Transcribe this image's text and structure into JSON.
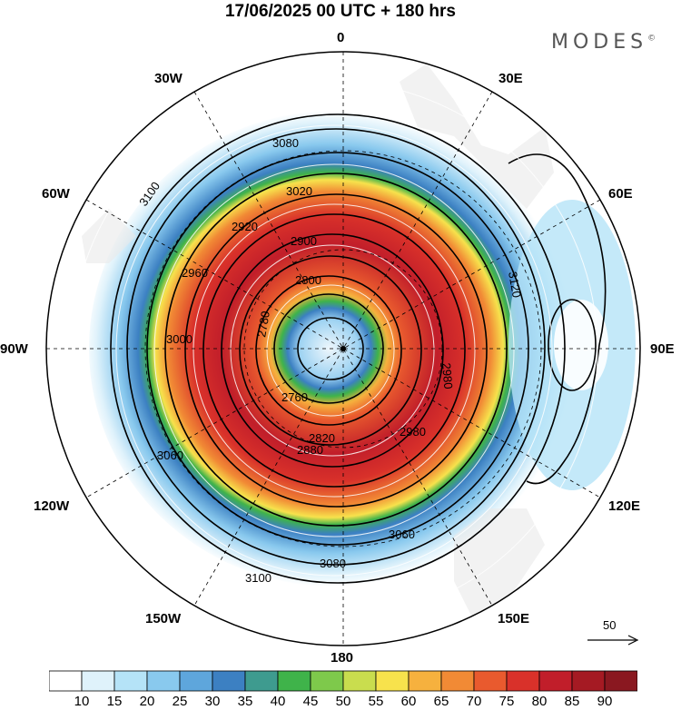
{
  "title": "17/06/2025  00 UTC  + 180 hrs",
  "brand": {
    "text": "MODES",
    "mark": "©"
  },
  "longitude_labels": {
    "top": "0",
    "top_left": "30W",
    "top_right": "30E",
    "upper_left": "60W",
    "upper_right": "60E",
    "left": "90W",
    "right": "90E",
    "lower_left": "120W",
    "lower_right": "120E",
    "bottom_left": "150W",
    "bottom_right": "150E",
    "bottom": "180"
  },
  "contour_labels": [
    "3080",
    "3100",
    "3020",
    "2920",
    "2900",
    "2960",
    "3000",
    "2800",
    "2780",
    "2760",
    "2880",
    "2820",
    "3060",
    "3120",
    "3100",
    "3080",
    "3060",
    "2980",
    "2980"
  ],
  "vector_scale_label": "50",
  "colorbar": {
    "labels": [
      "10",
      "15",
      "20",
      "25",
      "30",
      "35",
      "40",
      "45",
      "50",
      "55",
      "60",
      "65",
      "70",
      "75",
      "80",
      "85",
      "90"
    ],
    "colors": [
      "#ffffff",
      "#dff2fb",
      "#b5e3f7",
      "#89c9ee",
      "#5ea6dc",
      "#3c80c2",
      "#3e9b8f",
      "#3fb34a",
      "#7ec94b",
      "#c9dd4e",
      "#f7e24c",
      "#f6b13e",
      "#f18a35",
      "#e95a2e",
      "#d9312a",
      "#c11e2a",
      "#a51a23",
      "#8a1820"
    ]
  }
}
